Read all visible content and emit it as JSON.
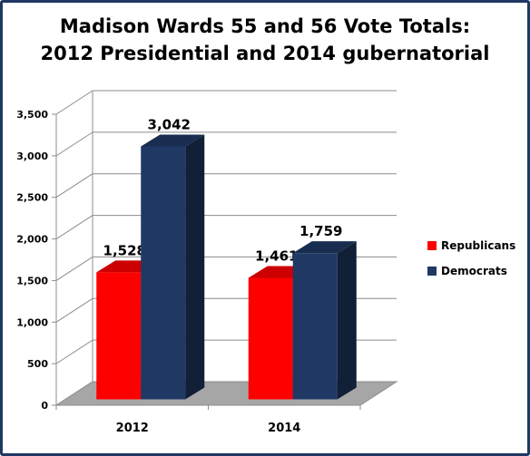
{
  "chart_data": {
    "type": "bar",
    "title_lines": [
      "Madison Wards 55 and 56 Vote Totals:",
      "2012 Presidential and 2014 gubernatorial"
    ],
    "xlabel": "",
    "ylabel": "",
    "categories": [
      "2012",
      "2014"
    ],
    "series": [
      {
        "name": "Republicans",
        "values": [
          1528,
          1461
        ],
        "labels": [
          "1,528",
          "1,461"
        ],
        "color": "#FF0000"
      },
      {
        "name": "Democrats",
        "values": [
          3042,
          1759
        ],
        "labels": [
          "3,042",
          "1,759"
        ],
        "color": "#1F3864"
      }
    ],
    "ylim": [
      0,
      3500
    ],
    "yticks": [
      0,
      500,
      1000,
      1500,
      2000,
      2500,
      3000,
      3500
    ],
    "ytick_labels": [
      "0",
      "500",
      "1,000",
      "1,500",
      "2,000",
      "2,500",
      "3,000",
      "3,500"
    ],
    "grid": true,
    "style": "3d-column",
    "legend": {
      "placement": "right"
    }
  }
}
